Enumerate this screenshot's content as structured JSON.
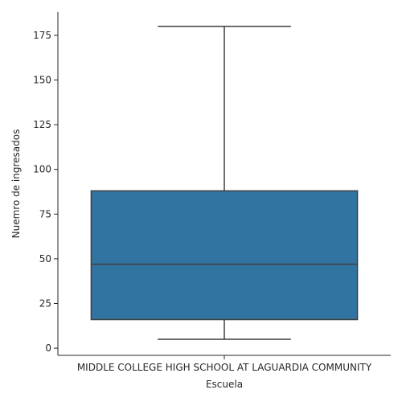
{
  "chart_data": {
    "type": "box",
    "title": "",
    "xlabel": "Escuela",
    "ylabel": "Nuemro de ingresados",
    "categories": [
      "MIDDLE COLLEGE HIGH SCHOOL AT LAGUARDIA COMMUNITY"
    ],
    "boxes": [
      {
        "category": "MIDDLE COLLEGE HIGH SCHOOL AT LAGUARDIA COMMUNITY",
        "whisker_low": 5,
        "q1": 16,
        "median": 47,
        "q3": 88,
        "whisker_high": 180
      }
    ],
    "ylim": [
      -4,
      188
    ],
    "yticks": [
      0,
      25,
      50,
      75,
      100,
      125,
      150,
      175
    ],
    "grid": false,
    "colors": {
      "box_fill": "#3274a1",
      "line": "#3f3f3f",
      "axis": "#262626"
    }
  }
}
